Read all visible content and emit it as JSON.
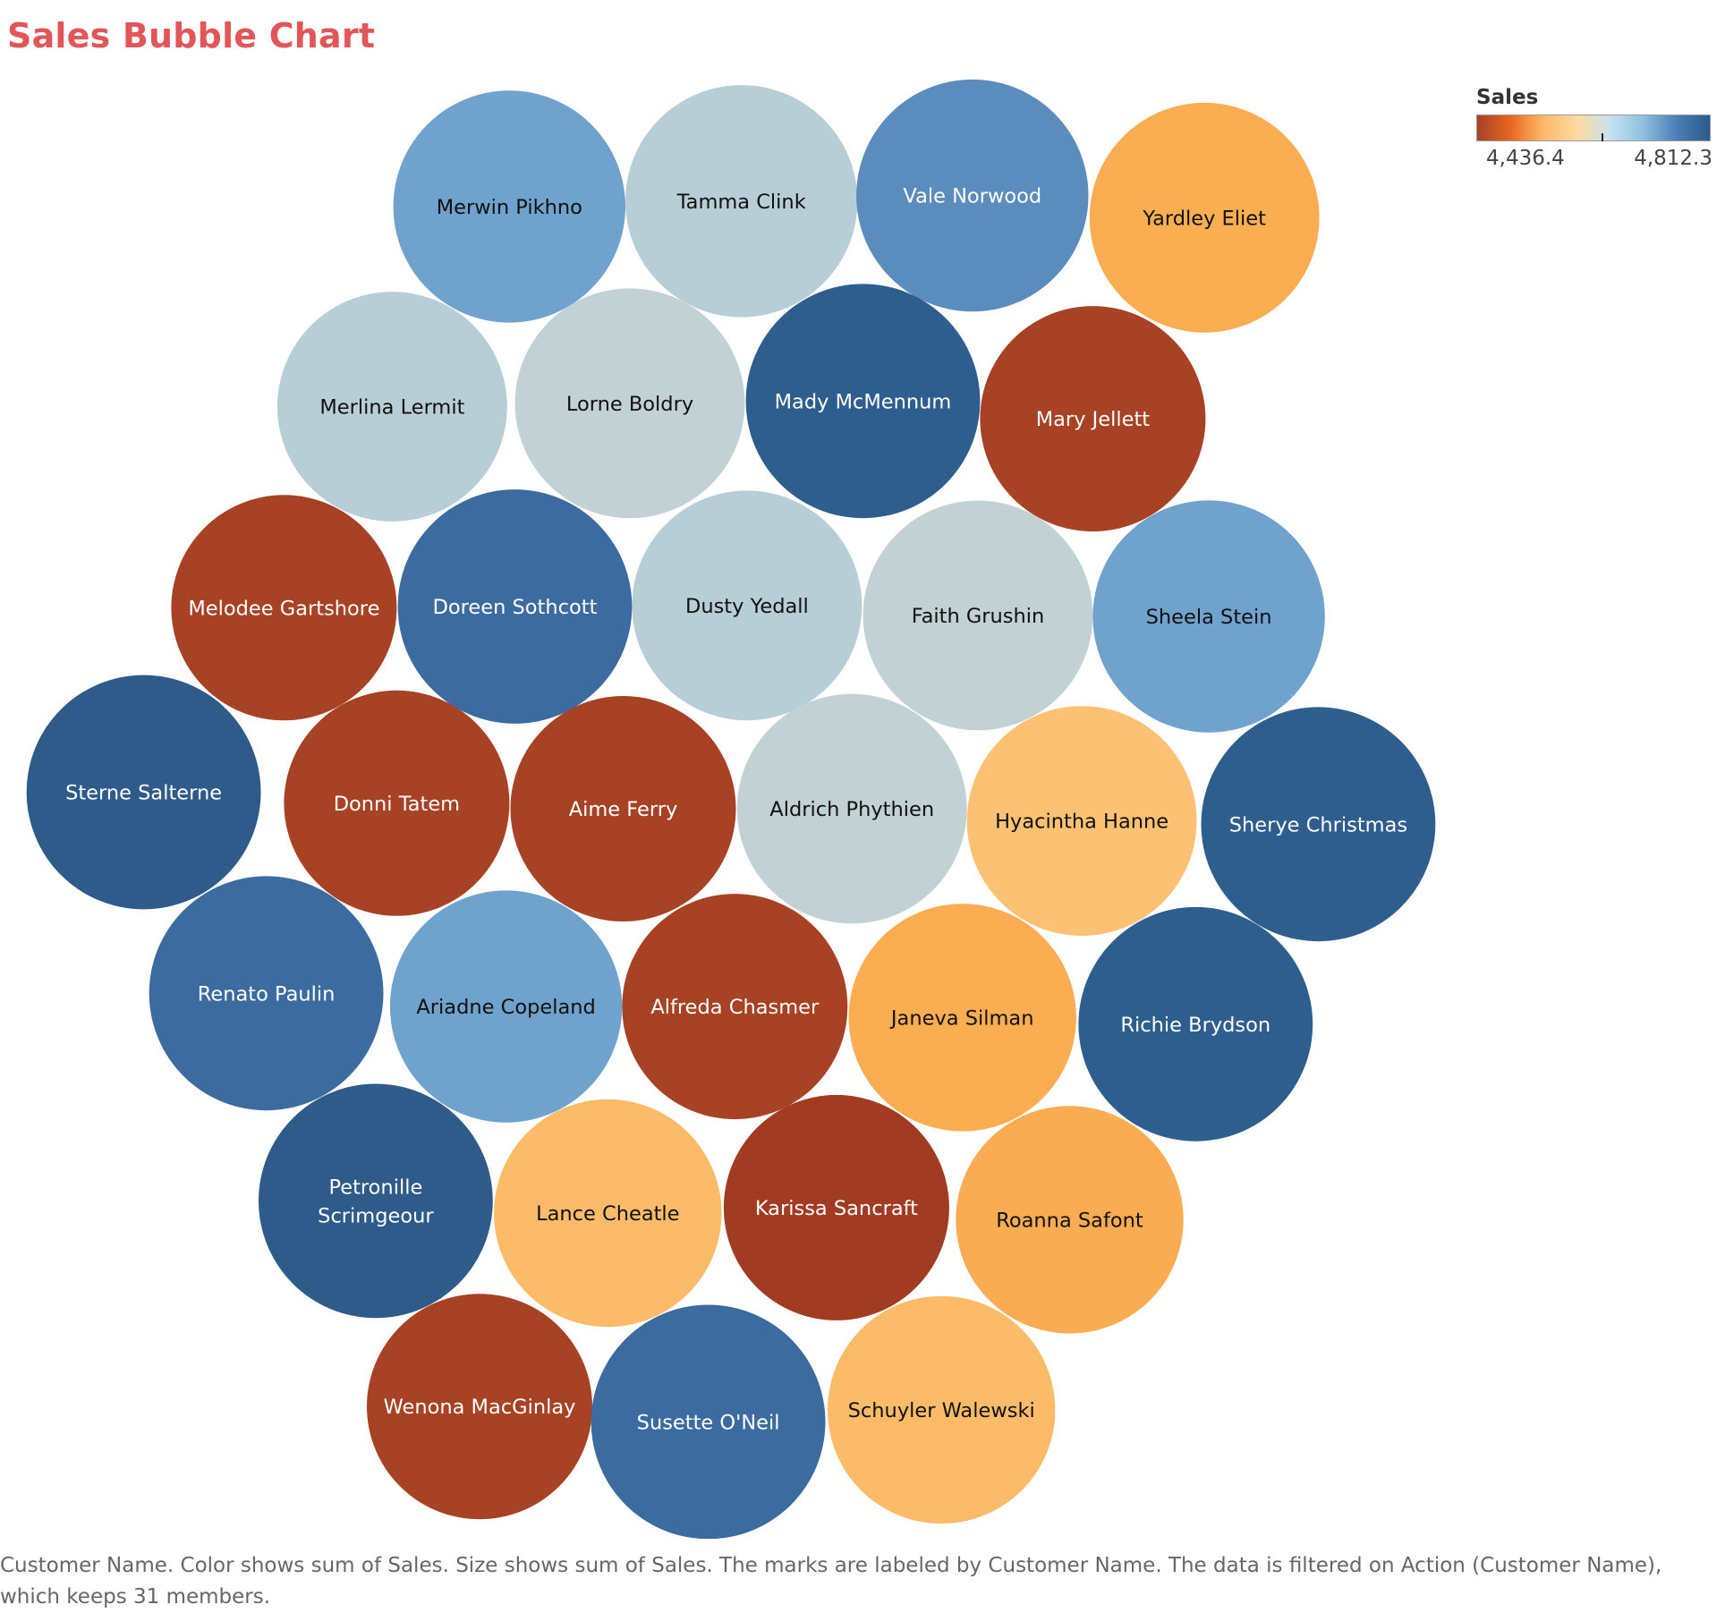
{
  "title": "Sales Bubble Chart",
  "legend": {
    "title": "Sales",
    "min_label": "4,436.4",
    "max_label": "4,812.3",
    "gradient_colors": [
      "#a6402a",
      "#e8671f",
      "#fdb96b",
      "#fdd9a0",
      "#c7e2ef",
      "#8fbfe0",
      "#4a7fb5",
      "#2b5a8c"
    ]
  },
  "caption": "Customer Name.  Color shows sum of Sales.  Size shows sum of Sales.  The marks are labeled by Customer Name. The data is filtered on Action (Customer Name), which keeps 31 members.",
  "chart_data": {
    "type": "bubble",
    "color_measure": "Sales",
    "size_measure": "Sales",
    "label_field": "Customer Name",
    "color_range": [
      4436.4,
      4812.3
    ],
    "bubbles": [
      {
        "name": "Merwin Pikhno",
        "color": "#6fa3cd",
        "text_color": "#111111"
      },
      {
        "name": "Tamma Clink",
        "color": "#b7ced6",
        "text_color": "#111111"
      },
      {
        "name": "Vale Norwood",
        "color": "#5a8dbd",
        "text_color": "#ffffff"
      },
      {
        "name": "Yardley Eliet",
        "color": "#fbad52",
        "text_color": "#111111"
      },
      {
        "name": "Merlina Lermit",
        "color": "#b8ced6",
        "text_color": "#111111"
      },
      {
        "name": "Lorne Boldry",
        "color": "#c2d2d4",
        "text_color": "#111111"
      },
      {
        "name": "Mady McMennum",
        "color": "#2e5e8e",
        "text_color": "#ffffff"
      },
      {
        "name": "Mary Jellett",
        "color": "#a84224",
        "text_color": "#ffffff"
      },
      {
        "name": "Melodee Gartshore",
        "color": "#a84224",
        "text_color": "#ffffff"
      },
      {
        "name": "Doreen Sothcott",
        "color": "#3c6c9f",
        "text_color": "#ffffff"
      },
      {
        "name": "Dusty Yedall",
        "color": "#b7ced6",
        "text_color": "#111111"
      },
      {
        "name": "Faith Grushin",
        "color": "#c2d2d4",
        "text_color": "#111111"
      },
      {
        "name": "Sheela Stein",
        "color": "#6fa3cd",
        "text_color": "#111111"
      },
      {
        "name": "Sterne Salterne",
        "color": "#2e5b8a",
        "text_color": "#ffffff"
      },
      {
        "name": "Donni Tatem",
        "color": "#a84224",
        "text_color": "#ffffff"
      },
      {
        "name": "Aime Ferry",
        "color": "#a84224",
        "text_color": "#ffffff"
      },
      {
        "name": "Aldrich Phythien",
        "color": "#c2d2d4",
        "text_color": "#111111"
      },
      {
        "name": "Hyacintha Hanne",
        "color": "#fdc173",
        "text_color": "#111111"
      },
      {
        "name": "Sherye Christmas",
        "color": "#2e5e8e",
        "text_color": "#ffffff"
      },
      {
        "name": "Renato Paulin",
        "color": "#3c6c9f",
        "text_color": "#ffffff"
      },
      {
        "name": "Ariadne Copeland",
        "color": "#6fa3cd",
        "text_color": "#111111"
      },
      {
        "name": "Alfreda Chasmer",
        "color": "#a84224",
        "text_color": "#ffffff"
      },
      {
        "name": "Janeva Silman",
        "color": "#fbad52",
        "text_color": "#111111"
      },
      {
        "name": "Richie Brydson",
        "color": "#2e5e8e",
        "text_color": "#ffffff"
      },
      {
        "name": "Petronille Scrimgeour",
        "color": "#2e5b8a",
        "text_color": "#ffffff"
      },
      {
        "name": "Lance Cheatle",
        "color": "#fcbb68",
        "text_color": "#111111"
      },
      {
        "name": "Karissa Sancraft",
        "color": "#a13b22",
        "text_color": "#ffffff"
      },
      {
        "name": "Roanna Safont",
        "color": "#faac52",
        "text_color": "#111111"
      },
      {
        "name": "Wenona MacGinlay",
        "color": "#a84224",
        "text_color": "#ffffff"
      },
      {
        "name": "Susette O'Neil",
        "color": "#3c6c9f",
        "text_color": "#ffffff"
      },
      {
        "name": "Schuyler Walewski",
        "color": "#fcbb68",
        "text_color": "#111111"
      }
    ]
  }
}
